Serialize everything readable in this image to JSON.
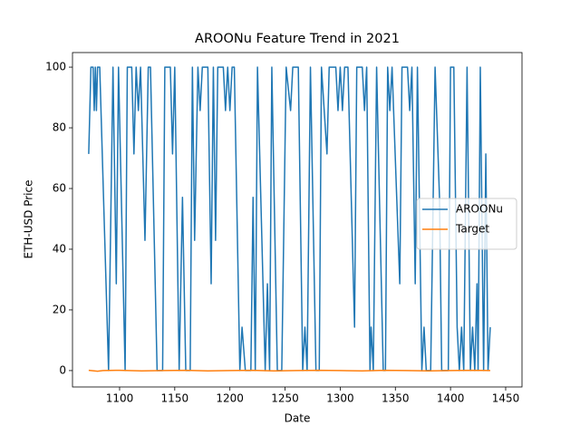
{
  "chart_data": {
    "type": "line",
    "title": "AROONu Feature Trend in 2021",
    "xlabel": "Date",
    "ylabel": "ETH-USD Price",
    "xlim": [
      1057.3,
      1464.8
    ],
    "ylim": [
      -5.4,
      104.8
    ],
    "xticks": [
      1100,
      1150,
      1200,
      1250,
      1300,
      1350,
      1400,
      1450
    ],
    "yticks": [
      0,
      20,
      40,
      60,
      80,
      100
    ],
    "legend": "center right",
    "series": [
      {
        "name": "AROONu",
        "color": "#1f77b4",
        "x": [
          1072,
          1074,
          1076,
          1077,
          1078,
          1079,
          1080,
          1082,
          1090,
          1094,
          1097,
          1099,
          1105,
          1107,
          1111,
          1113,
          1115,
          1117,
          1119,
          1123,
          1126,
          1128,
          1134,
          1139,
          1141,
          1146,
          1148,
          1150,
          1154,
          1157,
          1160,
          1164,
          1166,
          1168,
          1171,
          1173,
          1175,
          1180,
          1183,
          1185,
          1187,
          1189,
          1194,
          1196,
          1198,
          1200,
          1202,
          1204,
          1209,
          1211,
          1214,
          1219,
          1221,
          1223,
          1225,
          1232,
          1234,
          1236,
          1238,
          1243,
          1247,
          1251,
          1255,
          1257,
          1262,
          1266,
          1268,
          1270,
          1273,
          1278,
          1281,
          1283,
          1288,
          1290,
          1296,
          1298,
          1300,
          1302,
          1304,
          1307,
          1313,
          1315,
          1320,
          1322,
          1324,
          1327,
          1328,
          1330,
          1333,
          1339,
          1341,
          1343,
          1345,
          1347,
          1354,
          1356,
          1361,
          1363,
          1365,
          1368,
          1370,
          1374,
          1376,
          1378,
          1382,
          1386,
          1390,
          1392,
          1398,
          1400,
          1403,
          1406,
          1408,
          1410,
          1412,
          1415,
          1418,
          1420,
          1422,
          1424,
          1425,
          1427,
          1430,
          1432,
          1434,
          1436
        ],
        "values": [
          71.4,
          100,
          100,
          85.7,
          100,
          85.7,
          100,
          100,
          0,
          100,
          28.6,
          100,
          0,
          100,
          100,
          71.4,
          100,
          85.7,
          100,
          42.9,
          100,
          100,
          0,
          0,
          100,
          100,
          71.4,
          100,
          0,
          57.1,
          0,
          0,
          100,
          42.9,
          100,
          85.7,
          100,
          100,
          28.6,
          100,
          42.9,
          100,
          100,
          85.7,
          100,
          85.7,
          100,
          100,
          0,
          14.3,
          0,
          0,
          57.1,
          0,
          100,
          0,
          28.6,
          0,
          100,
          0,
          0,
          100,
          85.7,
          100,
          100,
          0,
          14.3,
          0,
          100,
          0,
          0,
          100,
          71.4,
          100,
          100,
          85.7,
          100,
          85.7,
          100,
          100,
          14.3,
          100,
          100,
          85.7,
          100,
          0,
          14.3,
          0,
          100,
          0,
          0,
          100,
          85.7,
          100,
          28.6,
          100,
          100,
          85.7,
          100,
          28.6,
          100,
          0,
          14.3,
          0,
          0,
          100,
          57.1,
          0,
          0,
          100,
          100,
          14.3,
          0,
          14.3,
          0,
          100,
          0,
          14.3,
          0,
          28.6,
          0,
          100,
          0,
          71.4,
          0,
          14.3
        ]
      },
      {
        "name": "Target",
        "color": "#ff7f0e",
        "x": [
          1072,
          1080,
          1085,
          1100,
          1120,
          1140,
          1160,
          1180,
          1200,
          1220,
          1240,
          1260,
          1280,
          1300,
          1320,
          1340,
          1360,
          1380,
          1400,
          1420,
          1436
        ],
        "values": [
          0.1,
          -0.2,
          0.0,
          0.1,
          -0.1,
          0.0,
          0.1,
          -0.1,
          0.0,
          0.1,
          -0.1,
          0.0,
          0.1,
          0.0,
          -0.1,
          0.1,
          0.0,
          -0.1,
          0.0,
          0.1,
          0.0
        ]
      }
    ]
  }
}
